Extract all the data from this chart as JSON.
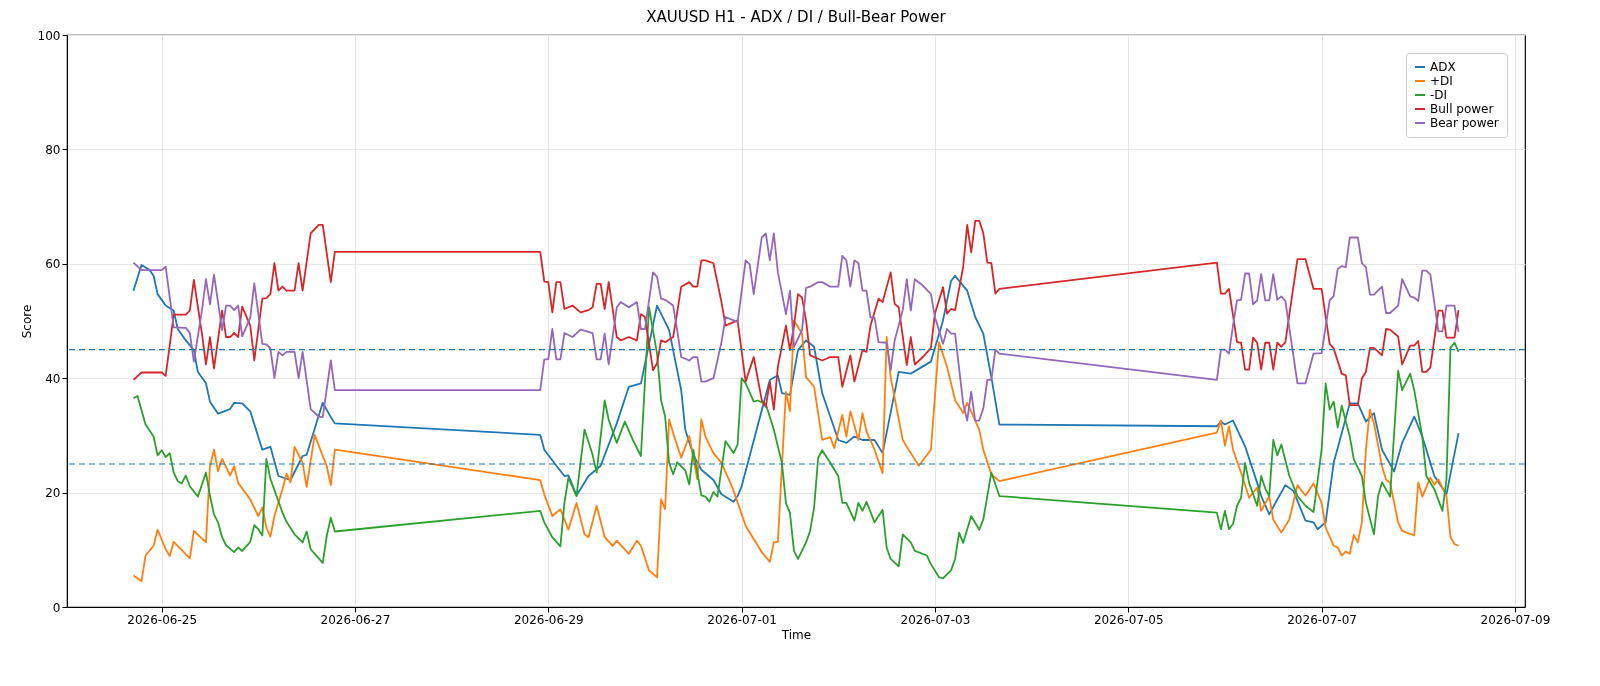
{
  "chart_data": {
    "type": "line",
    "title": "XAUUSD H1 - ADX / DI / Bull-Bear Power",
    "xlabel": "Time",
    "ylabel": "Score",
    "xlim": [
      "2026-06-24T00:30",
      "2026-07-09T02:30"
    ],
    "ylim": [
      0,
      100
    ],
    "xticks": [
      "2026-06-25",
      "2026-06-27",
      "2026-06-29",
      "2026-07-01",
      "2026-07-03",
      "2026-07-05",
      "2026-07-07",
      "2026-07-09"
    ],
    "yticks": [
      0,
      20,
      40,
      60,
      80,
      100
    ],
    "grid": true,
    "legend": "top right",
    "line_style": "solid",
    "ref_lines": [
      {
        "axis": "y",
        "value": 45,
        "label": null,
        "color": "#1f77b4",
        "line_style": "dashed"
      },
      {
        "axis": "y",
        "value": 25,
        "label": null,
        "color": "#1f77b4",
        "line_style": "dashed"
      }
    ],
    "series": [
      {
        "name": "ADX",
        "color": "#1f77b4",
        "x": [
          "2026-06-24T17:00",
          "2026-06-24T19:00",
          "2026-06-24T21:00",
          "2026-06-24T22:00",
          "2026-06-24T23:00",
          "2026-06-25T01:00",
          "2026-06-25T03:00",
          "2026-06-25T04:00",
          "2026-06-25T06:00",
          "2026-06-25T08:00",
          "2026-06-25T09:00",
          "2026-06-25T11:00",
          "2026-06-25T12:00",
          "2026-06-25T14:00",
          "2026-06-25T17:00",
          "2026-06-25T18:00",
          "2026-06-25T20:00",
          "2026-06-25T22:00",
          "2026-06-26T01:00",
          "2026-06-26T03:00",
          "2026-06-26T05:00",
          "2026-06-26T08:00",
          "2026-06-26T11:00",
          "2026-06-26T12:00",
          "2026-06-26T16:00",
          "2026-06-26T18:00",
          "2026-06-26T19:00",
          "2026-06-28T22:00",
          "2026-06-28T23:00",
          "2026-06-29T02:00",
          "2026-06-29T04:00",
          "2026-06-29T05:00",
          "2026-06-29T07:00",
          "2026-06-29T10:00",
          "2026-06-29T13:00",
          "2026-06-29T17:00",
          "2026-06-29T20:00",
          "2026-06-29T23:00",
          "2026-06-30T03:00",
          "2026-06-30T06:00",
          "2026-06-30T09:00",
          "2026-06-30T10:00",
          "2026-06-30T12:00",
          "2026-06-30T14:00",
          "2026-06-30T17:00",
          "2026-06-30T19:00",
          "2026-06-30T22:00",
          "2026-06-30T23:00",
          "2026-07-01T00:00",
          "2026-07-01T07:00",
          "2026-07-01T09:00",
          "2026-07-01T10:00",
          "2026-07-01T12:00",
          "2026-07-01T14:00",
          "2026-07-01T16:00",
          "2026-07-01T18:00",
          "2026-07-01T20:00",
          "2026-07-01T22:00",
          "2026-07-02T00:00",
          "2026-07-02T02:00",
          "2026-07-02T04:00",
          "2026-07-02T06:00",
          "2026-07-02T09:00",
          "2026-07-02T11:00",
          "2026-07-02T15:00",
          "2026-07-02T18:00",
          "2026-07-02T23:00",
          "2026-07-03T02:00",
          "2026-07-03T04:00",
          "2026-07-03T05:00",
          "2026-07-03T08:00",
          "2026-07-03T10:00",
          "2026-07-03T12:00",
          "2026-07-03T14:00",
          "2026-07-03T16:00",
          "2026-07-05T22:00",
          "2026-07-05T23:00",
          "2026-07-06T00:00",
          "2026-07-06T02:00",
          "2026-07-06T05:00",
          "2026-07-06T08:00",
          "2026-07-06T09:00",
          "2026-07-06T11:00",
          "2026-07-06T13:00",
          "2026-07-06T15:00",
          "2026-07-06T17:00",
          "2026-07-06T20:00",
          "2026-07-06T22:00",
          "2026-07-06T23:00",
          "2026-07-07T01:00",
          "2026-07-07T03:00",
          "2026-07-07T07:00",
          "2026-07-07T09:00",
          "2026-07-07T11:00",
          "2026-07-07T13:00",
          "2026-07-07T15:00",
          "2026-07-07T18:00",
          "2026-07-07T20:00",
          "2026-07-07T23:00",
          "2026-07-08T01:00",
          "2026-07-08T04:00",
          "2026-07-08T07:00",
          "2026-07-08T10:00"
        ],
        "values": [
          55.3,
          59.8,
          58.9,
          57.9,
          54.7,
          52.7,
          51.8,
          48.6,
          46.6,
          44.9,
          41.1,
          39.1,
          35.9,
          33.8,
          34.6,
          35.7,
          35.6,
          34.2,
          27.5,
          28.0,
          22.9,
          22.2,
          26.4,
          26.6,
          35.7,
          33.2,
          32.1,
          30.1,
          27.5,
          24.7,
          22.9,
          23.0,
          19.5,
          22.9,
          24.7,
          32.1,
          38.5,
          39.1,
          52.7,
          48.4,
          37.9,
          31.0,
          26.6,
          24.0,
          22.2,
          19.7,
          18.4,
          19.4,
          21.1,
          39.7,
          40.5,
          37.4,
          37.1,
          44.9,
          46.6,
          45.5,
          37.4,
          33.3,
          29.2,
          28.7,
          29.8,
          29.2,
          29.2,
          26.9,
          41.1,
          40.8,
          42.9,
          50.1,
          57.0,
          57.9,
          55.3,
          50.7,
          47.8,
          40.2,
          31.9,
          31.6,
          32.4,
          31.9,
          32.6,
          28.1,
          21.7,
          19.4,
          16.2,
          18.8,
          21.3,
          20.3,
          15.1,
          14.8,
          13.6,
          14.8,
          25.2,
          35.6,
          35.6,
          32.4,
          33.9,
          27.5,
          23.7,
          28.7,
          33.3,
          29.8,
          22.9,
          19.7,
          30.4
        ]
      },
      {
        "name": "+DI",
        "color": "#ff7f0e",
        "x": [
          "2026-06-24T17:00",
          "2026-06-24T19:00",
          "2026-06-24T20:00",
          "2026-06-24T22:00",
          "2026-06-24T23:00",
          "2026-06-25T01:00",
          "2026-06-25T02:00",
          "2026-06-25T03:00",
          "2026-06-25T07:00",
          "2026-06-25T08:00",
          "2026-06-25T11:00",
          "2026-06-25T12:00",
          "2026-06-25T13:00",
          "2026-06-25T14:00",
          "2026-06-25T15:00",
          "2026-06-25T17:00",
          "2026-06-25T18:00",
          "2026-06-25T19:00",
          "2026-06-25T22:00",
          "2026-06-26T00:00",
          "2026-06-26T01:00",
          "2026-06-26T02:00",
          "2026-06-26T03:00",
          "2026-06-26T04:00",
          "2026-06-26T06:00",
          "2026-06-26T07:00",
          "2026-06-26T08:00",
          "2026-06-26T09:00",
          "2026-06-26T11:00",
          "2026-06-26T12:00",
          "2026-06-26T14:00",
          "2026-06-26T17:00",
          "2026-06-26T18:00",
          "2026-06-26T19:00",
          "2026-06-28T22:00",
          "2026-06-28T23:00",
          "2026-06-29T01:00",
          "2026-06-29T03:00",
          "2026-06-29T05:00",
          "2026-06-29T07:00",
          "2026-06-29T09:00",
          "2026-06-29T10:00",
          "2026-06-29T12:00",
          "2026-06-29T14:00",
          "2026-06-29T16:00",
          "2026-06-29T17:00",
          "2026-06-29T20:00",
          "2026-06-29T22:00",
          "2026-06-29T23:00",
          "2026-06-30T01:00",
          "2026-06-30T03:00",
          "2026-06-30T04:00",
          "2026-06-30T05:00",
          "2026-06-30T06:00",
          "2026-06-30T07:00",
          "2026-06-30T09:00",
          "2026-06-30T11:00",
          "2026-06-30T13:00",
          "2026-06-30T14:00",
          "2026-06-30T15:00",
          "2026-06-30T17:00",
          "2026-06-30T19:00",
          "2026-06-30T21:00",
          "2026-06-30T22:00",
          "2026-07-01T01:00",
          "2026-07-01T03:00",
          "2026-07-01T05:00",
          "2026-07-01T07:00",
          "2026-07-01T08:00",
          "2026-07-01T09:00",
          "2026-07-01T11:00",
          "2026-07-01T12:00",
          "2026-07-01T13:00",
          "2026-07-01T15:00",
          "2026-07-01T16:00",
          "2026-07-01T18:00",
          "2026-07-01T20:00",
          "2026-07-01T22:00",
          "2026-07-01T23:00",
          "2026-07-02T01:00",
          "2026-07-02T02:00",
          "2026-07-02T03:00",
          "2026-07-02T05:00",
          "2026-07-02T06:00",
          "2026-07-02T07:00",
          "2026-07-02T09:00",
          "2026-07-02T11:00",
          "2026-07-02T12:00",
          "2026-07-02T13:00",
          "2026-07-02T16:00",
          "2026-07-02T18:00",
          "2026-07-02T20:00",
          "2026-07-02T23:00",
          "2026-07-03T01:00",
          "2026-07-03T03:00",
          "2026-07-03T05:00",
          "2026-07-03T07:00",
          "2026-07-03T08:00",
          "2026-07-03T11:00",
          "2026-07-03T12:00",
          "2026-07-03T14:00",
          "2026-07-03T16:00",
          "2026-07-05T22:00",
          "2026-07-05T23:00",
          "2026-07-06T00:00",
          "2026-07-06T01:00",
          "2026-07-06T02:00",
          "2026-07-06T04:00",
          "2026-07-06T06:00",
          "2026-07-06T08:00",
          "2026-07-06T09:00",
          "2026-07-06T11:00",
          "2026-07-06T12:00",
          "2026-07-06T14:00",
          "2026-07-06T16:00",
          "2026-07-06T18:00",
          "2026-07-06T20:00",
          "2026-07-06T22:00",
          "2026-07-07T00:00",
          "2026-07-07T01:00",
          "2026-07-07T03:00",
          "2026-07-07T04:00",
          "2026-07-07T05:00",
          "2026-07-07T06:00",
          "2026-07-07T07:00",
          "2026-07-07T08:00",
          "2026-07-07T09:00",
          "2026-07-07T10:00",
          "2026-07-07T11:00",
          "2026-07-07T12:00",
          "2026-07-07T13:00",
          "2026-07-07T15:00",
          "2026-07-07T16:00",
          "2026-07-07T17:00",
          "2026-07-07T19:00",
          "2026-07-07T20:00",
          "2026-07-07T23:00",
          "2026-07-08T00:00",
          "2026-07-08T01:00",
          "2026-07-08T03:00",
          "2026-07-08T04:00",
          "2026-07-08T05:00",
          "2026-07-08T07:00",
          "2026-07-08T08:00",
          "2026-07-08T09:00",
          "2026-07-08T10:00"
        ],
        "values": [
          5.5,
          4.5,
          9.0,
          10.7,
          13.5,
          10.1,
          8.9,
          11.4,
          8.5,
          13.3,
          11.3,
          24.6,
          27.5,
          23.7,
          25.9,
          23.0,
          24.6,
          21.7,
          18.8,
          15.9,
          17.4,
          13.9,
          12.3,
          15.9,
          20.6,
          23.3,
          21.8,
          28.0,
          25.2,
          21.0,
          30.1,
          24.6,
          21.3,
          27.5,
          22.2,
          19.7,
          15.9,
          17.1,
          13.5,
          18.2,
          12.7,
          12.2,
          17.7,
          12.2,
          10.7,
          11.6,
          9.3,
          11.6,
          10.7,
          6.4,
          5.2,
          18.8,
          17.1,
          32.8,
          30.4,
          26.1,
          29.9,
          22.3,
          32.8,
          29.8,
          26.9,
          25.2,
          22.0,
          20.3,
          14.2,
          11.9,
          9.6,
          7.9,
          11.3,
          11.4,
          37.6,
          34.2,
          50.1,
          47.8,
          40.2,
          38.5,
          29.2,
          29.7,
          27.8,
          33.6,
          29.8,
          34.2,
          29.2,
          33.9,
          30.7,
          27.5,
          23.4,
          47.2,
          40.2,
          29.2,
          26.9,
          24.7,
          27.5,
          46.3,
          42.0,
          36.2,
          33.9,
          35.7,
          31.0,
          27.5,
          23.2,
          22.0,
          30.5,
          32.6,
          28.2,
          31.6,
          27.5,
          23.5,
          19.1,
          20.9,
          16.8,
          19.4,
          15.3,
          13.0,
          15.3,
          21.3,
          19.5,
          21.6,
          18.2,
          13.9,
          10.7,
          10.4,
          9.0,
          9.7,
          9.3,
          12.6,
          11.3,
          14.8,
          27.5,
          34.5,
          32.1,
          24.6,
          22.3,
          21.7,
          14.8,
          13.3,
          12.5,
          21.8,
          19.3,
          22.6,
          21.4,
          22.3,
          19.4,
          12.2,
          11.0,
          10.7
        ]
      },
      {
        "name": "-DI",
        "color": "#2ca02c",
        "x": [
          "2026-06-24T17:00",
          "2026-06-24T18:00",
          "2026-06-24T20:00",
          "2026-06-24T22:00",
          "2026-06-24T23:00",
          "2026-06-25T00:00",
          "2026-06-25T01:00",
          "2026-06-25T02:00",
          "2026-06-25T03:00",
          "2026-06-25T04:00",
          "2026-06-25T05:00",
          "2026-06-25T06:00",
          "2026-06-25T07:00",
          "2026-06-25T09:00",
          "2026-06-25T11:00",
          "2026-06-25T12:00",
          "2026-06-25T13:00",
          "2026-06-25T14:00",
          "2026-06-25T15:00",
          "2026-06-25T16:00",
          "2026-06-25T18:00",
          "2026-06-25T19:00",
          "2026-06-25T20:00",
          "2026-06-25T22:00",
          "2026-06-25T23:00",
          "2026-06-26T00:00",
          "2026-06-26T01:00",
          "2026-06-26T02:00",
          "2026-06-26T03:00",
          "2026-06-26T06:00",
          "2026-06-26T07:00",
          "2026-06-26T09:00",
          "2026-06-26T11:00",
          "2026-06-26T12:00",
          "2026-06-26T13:00",
          "2026-06-26T15:00",
          "2026-06-26T16:00",
          "2026-06-26T17:00",
          "2026-06-26T18:00",
          "2026-06-26T19:00",
          "2026-06-28T22:00",
          "2026-06-28T23:00",
          "2026-06-29T01:00",
          "2026-06-29T03:00",
          "2026-06-29T04:00",
          "2026-06-29T05:00",
          "2026-06-29T07:00",
          "2026-06-29T09:00",
          "2026-06-29T11:00",
          "2026-06-29T12:00",
          "2026-06-29T14:00",
          "2026-06-29T15:00",
          "2026-06-29T17:00",
          "2026-06-29T19:00",
          "2026-06-29T21:00",
          "2026-06-29T23:00",
          "2026-06-30T01:00",
          "2026-06-30T03:00",
          "2026-06-30T04:00",
          "2026-06-30T05:00",
          "2026-06-30T06:00",
          "2026-06-30T07:00",
          "2026-06-30T08:00",
          "2026-06-30T10:00",
          "2026-06-30T11:00",
          "2026-06-30T12:00",
          "2026-06-30T14:00",
          "2026-06-30T15:00",
          "2026-06-30T16:00",
          "2026-06-30T17:00",
          "2026-06-30T18:00",
          "2026-06-30T20:00",
          "2026-06-30T22:00",
          "2026-06-30T23:00",
          "2026-07-01T00:00",
          "2026-07-01T01:00",
          "2026-07-01T03:00",
          "2026-07-01T04:00",
          "2026-07-01T06:00",
          "2026-07-01T08:00",
          "2026-07-01T10:00",
          "2026-07-01T11:00",
          "2026-07-01T12:00",
          "2026-07-01T13:00",
          "2026-07-01T14:00",
          "2026-07-01T16:00",
          "2026-07-01T17:00",
          "2026-07-01T18:00",
          "2026-07-01T19:00",
          "2026-07-01T20:00",
          "2026-07-01T22:00",
          "2026-07-02T00:00",
          "2026-07-02T01:00",
          "2026-07-02T02:00",
          "2026-07-02T04:00",
          "2026-07-02T05:00",
          "2026-07-02T06:00",
          "2026-07-02T07:00",
          "2026-07-02T09:00",
          "2026-07-02T11:00",
          "2026-07-02T12:00",
          "2026-07-02T13:00",
          "2026-07-02T15:00",
          "2026-07-02T16:00",
          "2026-07-02T18:00",
          "2026-07-02T19:00",
          "2026-07-02T22:00",
          "2026-07-02T23:00",
          "2026-07-03T01:00",
          "2026-07-03T02:00",
          "2026-07-03T04:00",
          "2026-07-03T05:00",
          "2026-07-03T06:00",
          "2026-07-03T07:00",
          "2026-07-03T09:00",
          "2026-07-03T11:00",
          "2026-07-03T12:00",
          "2026-07-03T14:00",
          "2026-07-03T16:00",
          "2026-07-05T22:00",
          "2026-07-05T23:00",
          "2026-07-06T00:00",
          "2026-07-06T01:00",
          "2026-07-06T02:00",
          "2026-07-06T03:00",
          "2026-07-06T04:00",
          "2026-07-06T05:00",
          "2026-07-06T06:00",
          "2026-07-06T08:00",
          "2026-07-06T09:00",
          "2026-07-06T10:00",
          "2026-07-06T11:00",
          "2026-07-06T12:00",
          "2026-07-06T13:00",
          "2026-07-06T14:00",
          "2026-07-06T16:00",
          "2026-07-06T18:00",
          "2026-07-06T20:00",
          "2026-07-06T22:00",
          "2026-07-07T00:00",
          "2026-07-07T01:00",
          "2026-07-07T02:00",
          "2026-07-07T03:00",
          "2026-07-07T04:00",
          "2026-07-07T05:00",
          "2026-07-07T07:00",
          "2026-07-07T08:00",
          "2026-07-07T10:00",
          "2026-07-07T11:00",
          "2026-07-07T13:00",
          "2026-07-07T14:00",
          "2026-07-07T15:00",
          "2026-07-07T17:00",
          "2026-07-07T19:00",
          "2026-07-07T20:00",
          "2026-07-07T22:00",
          "2026-07-07T23:00",
          "2026-07-08T01:00",
          "2026-07-08T02:00",
          "2026-07-08T04:00",
          "2026-07-08T06:00",
          "2026-07-08T07:00",
          "2026-07-08T08:00",
          "2026-07-08T09:00",
          "2026-07-08T10:00"
        ],
        "values": [
          36.5,
          36.9,
          31.9,
          29.8,
          26.5,
          27.4,
          26.2,
          26.9,
          23.5,
          22.0,
          21.6,
          23.0,
          21.1,
          19.3,
          23.5,
          19.4,
          16.2,
          14.8,
          12.2,
          10.8,
          9.6,
          10.4,
          9.8,
          11.4,
          14.3,
          13.6,
          12.5,
          25.9,
          22.4,
          16.5,
          14.9,
          12.7,
          11.3,
          13.2,
          10.1,
          8.5,
          7.7,
          12.5,
          15.6,
          13.2,
          16.8,
          14.8,
          12.2,
          10.6,
          18.2,
          22.6,
          19.4,
          31.0,
          26.6,
          23.5,
          36.1,
          32.7,
          28.7,
          32.4,
          29.2,
          26.4,
          52.4,
          44.3,
          36.2,
          33.3,
          25.2,
          23.2,
          25.3,
          23.9,
          21.4,
          27.5,
          19.5,
          19.3,
          18.4,
          20.1,
          19.3,
          29.0,
          26.9,
          28.4,
          40.0,
          39.1,
          35.9,
          36.1,
          35.5,
          31.0,
          25.2,
          18.2,
          16.4,
          9.8,
          8.4,
          11.3,
          13.3,
          17.4,
          26.1,
          27.4,
          25.2,
          22.9,
          18.2,
          18.2,
          15.1,
          18.2,
          16.8,
          18.4,
          14.8,
          17.0,
          10.4,
          8.4,
          7.1,
          12.7,
          11.3,
          9.8,
          9.0,
          7.5,
          5.2,
          5.0,
          6.4,
          8.4,
          13.0,
          11.2,
          15.9,
          13.5,
          15.3,
          23.5,
          19.4,
          16.5,
          13.6,
          16.8,
          13.6,
          14.5,
          17.7,
          19.1,
          25.2,
          21.7,
          17.7,
          22.9,
          20.7,
          19.4,
          29.2,
          26.5,
          28.4,
          22.9,
          19.4,
          17.7,
          16.6,
          27.5,
          39.1,
          34.5,
          35.9,
          31.4,
          35.2,
          29.8,
          25.8,
          22.9,
          18.2,
          12.7,
          19.3,
          21.8,
          19.3,
          41.3,
          37.9,
          40.8,
          37.9,
          29.8,
          22.9,
          20.6,
          16.8,
          22.3,
          45.3,
          46.2,
          44.6
        ]
      },
      {
        "name": "Bull power",
        "color": "#d62728",
        "x": [
          "2026-06-24T17:00",
          "2026-06-24T19:00",
          "2026-06-25T00:00",
          "2026-06-25T01:00",
          "2026-06-25T03:00",
          "2026-06-25T06:00",
          "2026-06-25T07:00",
          "2026-06-25T08:00",
          "2026-06-25T10:00",
          "2026-06-25T11:00",
          "2026-06-25T12:00",
          "2026-06-25T13:00",
          "2026-06-25T15:00",
          "2026-06-25T16:00",
          "2026-06-25T17:00",
          "2026-06-25T18:00",
          "2026-06-25T19:00",
          "2026-06-25T20:00",
          "2026-06-25T22:00",
          "2026-06-25T23:00",
          "2026-06-26T01:00",
          "2026-06-26T02:00",
          "2026-06-26T03:00",
          "2026-06-26T04:00",
          "2026-06-26T05:00",
          "2026-06-26T06:00",
          "2026-06-26T07:00",
          "2026-06-26T09:00",
          "2026-06-26T10:00",
          "2026-06-26T11:00",
          "2026-06-26T13:00",
          "2026-06-26T15:00",
          "2026-06-26T16:00",
          "2026-06-26T18:00",
          "2026-06-26T19:00",
          "2026-06-28T22:00",
          "2026-06-28T23:00",
          "2026-06-29T00:00",
          "2026-06-29T01:00",
          "2026-06-29T02:00",
          "2026-06-29T03:00",
          "2026-06-29T04:00",
          "2026-06-29T06:00",
          "2026-06-29T08:00",
          "2026-06-29T10:00",
          "2026-06-29T11:00",
          "2026-06-29T12:00",
          "2026-06-29T13:00",
          "2026-06-29T14:00",
          "2026-06-29T15:00",
          "2026-06-29T17:00",
          "2026-06-29T18:00",
          "2026-06-29T20:00",
          "2026-06-29T22:00",
          "2026-06-29T23:00",
          "2026-06-30T00:00",
          "2026-06-30T02:00",
          "2026-06-30T03:00",
          "2026-06-30T04:00",
          "2026-06-30T05:00",
          "2026-06-30T07:00",
          "2026-06-30T08:00",
          "2026-06-30T09:00",
          "2026-06-30T11:00",
          "2026-06-30T12:00",
          "2026-06-30T13:00",
          "2026-06-30T14:00",
          "2026-06-30T15:00",
          "2026-06-30T17:00",
          "2026-06-30T19:00",
          "2026-06-30T20:00",
          "2026-06-30T23:00",
          "2026-07-01T01:00",
          "2026-07-01T03:00",
          "2026-07-01T05:00",
          "2026-07-01T06:00",
          "2026-07-01T07:00",
          "2026-07-01T08:00",
          "2026-07-01T09:00",
          "2026-07-01T11:00",
          "2026-07-01T12:00",
          "2026-07-01T13:00",
          "2026-07-01T14:00",
          "2026-07-01T15:00",
          "2026-07-01T16:00",
          "2026-07-01T17:00",
          "2026-07-01T18:00",
          "2026-07-01T20:00",
          "2026-07-01T22:00",
          "2026-07-02T00:00",
          "2026-07-02T01:00",
          "2026-07-02T03:00",
          "2026-07-02T04:00",
          "2026-07-02T06:00",
          "2026-07-02T07:00",
          "2026-07-02T08:00",
          "2026-07-02T10:00",
          "2026-07-02T11:00",
          "2026-07-02T13:00",
          "2026-07-02T14:00",
          "2026-07-02T15:00",
          "2026-07-02T17:00",
          "2026-07-02T18:00",
          "2026-07-02T19:00",
          "2026-07-02T21:00",
          "2026-07-02T23:00",
          "2026-07-03T00:00",
          "2026-07-03T02:00",
          "2026-07-03T03:00",
          "2026-07-03T04:00",
          "2026-07-03T05:00",
          "2026-07-03T07:00",
          "2026-07-03T08:00",
          "2026-07-03T09:00",
          "2026-07-03T10:00",
          "2026-07-03T11:00",
          "2026-07-03T12:00",
          "2026-07-03T13:00",
          "2026-07-03T14:00",
          "2026-07-03T15:00",
          "2026-07-03T16:00",
          "2026-07-05T22:00",
          "2026-07-05T23:00",
          "2026-07-06T00:00",
          "2026-07-06T01:00",
          "2026-07-06T02:00",
          "2026-07-06T03:00",
          "2026-07-06T04:00",
          "2026-07-06T05:00",
          "2026-07-06T06:00",
          "2026-07-06T07:00",
          "2026-07-06T08:00",
          "2026-07-06T09:00",
          "2026-07-06T10:00",
          "2026-07-06T11:00",
          "2026-07-06T12:00",
          "2026-07-06T13:00",
          "2026-07-06T14:00",
          "2026-07-06T15:00",
          "2026-07-06T18:00",
          "2026-07-06T20:00",
          "2026-07-06T22:00",
          "2026-07-07T00:00",
          "2026-07-07T02:00",
          "2026-07-07T03:00",
          "2026-07-07T05:00",
          "2026-07-07T06:00",
          "2026-07-07T07:00",
          "2026-07-07T09:00",
          "2026-07-07T10:00",
          "2026-07-07T11:00",
          "2026-07-07T12:00",
          "2026-07-07T13:00",
          "2026-07-07T15:00",
          "2026-07-07T16:00",
          "2026-07-07T17:00",
          "2026-07-07T19:00",
          "2026-07-07T20:00",
          "2026-07-07T22:00",
          "2026-07-07T23:00",
          "2026-07-08T00:00",
          "2026-07-08T01:00",
          "2026-07-08T02:00",
          "2026-07-08T03:00",
          "2026-07-08T05:00",
          "2026-07-08T06:00",
          "2026-07-08T07:00",
          "2026-07-08T09:00",
          "2026-07-08T10:00"
        ],
        "values": [
          39.7,
          41.0,
          41.0,
          40.4,
          51.1,
          51.1,
          51.8,
          57.2,
          47.8,
          42.4,
          47.2,
          41.7,
          51.8,
          47.2,
          47.2,
          47.9,
          47.2,
          52.5,
          49.2,
          43.1,
          53.9,
          54.0,
          54.7,
          60.1,
          55.3,
          56.0,
          55.3,
          55.3,
          60.1,
          55.3,
          65.3,
          66.8,
          66.8,
          56.8,
          62.1,
          62.1,
          56.9,
          56.8,
          51.5,
          56.8,
          56.8,
          52.1,
          52.7,
          51.5,
          51.9,
          52.4,
          56.5,
          56.5,
          52.1,
          56.8,
          47.2,
          46.6,
          47.2,
          46.6,
          51.2,
          50.7,
          41.4,
          42.6,
          46.6,
          46.3,
          47.2,
          51.5,
          56.0,
          56.8,
          56.0,
          56.0,
          60.6,
          60.6,
          60.1,
          53.3,
          49.2,
          50.1,
          39.4,
          43.7,
          36.2,
          35.0,
          39.4,
          34.5,
          42.0,
          49.2,
          44.9,
          49.2,
          54.7,
          54.1,
          50.1,
          44.0,
          43.7,
          43.1,
          43.7,
          43.7,
          38.5,
          44.0,
          39.4,
          44.9,
          44.6,
          49.2,
          53.9,
          53.3,
          58.5,
          53.0,
          52.4,
          42.3,
          47.2,
          42.4,
          43.7,
          45.3,
          51.3,
          55.9,
          51.3,
          52.1,
          51.9,
          59.4,
          66.8,
          62.0,
          67.5,
          67.5,
          65.4,
          60.2,
          60.1,
          54.8,
          55.6,
          60.2,
          54.8,
          54.8,
          55.6,
          51.0,
          46.3,
          46.2,
          41.5,
          41.5,
          47.1,
          46.2,
          41.5,
          46.2,
          46.2,
          41.5,
          46.2,
          45.5,
          46.3,
          60.8,
          60.8,
          55.6,
          55.6,
          46.0,
          45.2,
          40.8,
          40.5,
          35.3,
          35.3,
          40.0,
          41.1,
          45.3,
          45.3,
          44.0,
          48.6,
          48.5,
          47.3,
          42.4,
          45.7,
          45.7,
          46.5,
          41.1,
          41.1,
          41.9,
          51.8,
          51.8,
          47.1,
          47.1,
          51.9
        ]
      },
      {
        "name": "Bear power",
        "color": "#9467bd",
        "x": [
          "2026-06-24T17:00",
          "2026-06-24T19:00",
          "2026-06-25T00:00",
          "2026-06-25T01:00",
          "2026-06-25T03:00",
          "2026-06-25T06:00",
          "2026-06-25T07:00",
          "2026-06-25T08:00",
          "2026-06-25T10:00",
          "2026-06-25T11:00",
          "2026-06-25T12:00",
          "2026-06-25T13:00",
          "2026-06-25T15:00",
          "2026-06-25T16:00",
          "2026-06-25T17:00",
          "2026-06-25T18:00",
          "2026-06-25T19:00",
          "2026-06-25T20:00",
          "2026-06-25T22:00",
          "2026-06-25T23:00",
          "2026-06-26T01:00",
          "2026-06-26T02:00",
          "2026-06-26T03:00",
          "2026-06-26T04:00",
          "2026-06-26T05:00",
          "2026-06-26T06:00",
          "2026-06-26T07:00",
          "2026-06-26T09:00",
          "2026-06-26T10:00",
          "2026-06-26T11:00",
          "2026-06-26T13:00",
          "2026-06-26T15:00",
          "2026-06-26T16:00",
          "2026-06-26T18:00",
          "2026-06-26T19:00",
          "2026-06-28T22:00",
          "2026-06-28T23:00",
          "2026-06-29T00:00",
          "2026-06-29T01:00",
          "2026-06-29T02:00",
          "2026-06-29T03:00",
          "2026-06-29T04:00",
          "2026-06-29T06:00",
          "2026-06-29T08:00",
          "2026-06-29T10:00",
          "2026-06-29T11:00",
          "2026-06-29T12:00",
          "2026-06-29T13:00",
          "2026-06-29T14:00",
          "2026-06-29T15:00",
          "2026-06-29T17:00",
          "2026-06-29T18:00",
          "2026-06-29T20:00",
          "2026-06-29T22:00",
          "2026-06-29T23:00",
          "2026-06-30T00:00",
          "2026-06-30T02:00",
          "2026-06-30T03:00",
          "2026-06-30T04:00",
          "2026-06-30T05:00",
          "2026-06-30T07:00",
          "2026-06-30T08:00",
          "2026-06-30T09:00",
          "2026-06-30T11:00",
          "2026-06-30T12:00",
          "2026-06-30T13:00",
          "2026-06-30T14:00",
          "2026-06-30T15:00",
          "2026-06-30T17:00",
          "2026-06-30T19:00",
          "2026-06-30T20:00",
          "2026-06-30T23:00",
          "2026-07-01T01:00",
          "2026-07-01T02:00",
          "2026-07-01T03:00",
          "2026-07-01T05:00",
          "2026-07-01T06:00",
          "2026-07-01T07:00",
          "2026-07-01T08:00",
          "2026-07-01T09:00",
          "2026-07-01T11:00",
          "2026-07-01T12:00",
          "2026-07-01T13:00",
          "2026-07-01T15:00",
          "2026-07-01T16:00",
          "2026-07-01T17:00",
          "2026-07-01T19:00",
          "2026-07-01T20:00",
          "2026-07-01T22:00",
          "2026-07-02T00:00",
          "2026-07-02T01:00",
          "2026-07-02T02:00",
          "2026-07-02T03:00",
          "2026-07-02T04:00",
          "2026-07-02T05:00",
          "2026-07-02T06:00",
          "2026-07-02T07:00",
          "2026-07-02T08:00",
          "2026-07-02T09:00",
          "2026-07-02T10:00",
          "2026-07-02T12:00",
          "2026-07-02T13:00",
          "2026-07-02T14:00",
          "2026-07-02T16:00",
          "2026-07-02T17:00",
          "2026-07-02T18:00",
          "2026-07-02T19:00",
          "2026-07-02T21:00",
          "2026-07-02T23:00",
          "2026-07-03T00:00",
          "2026-07-03T02:00",
          "2026-07-03T03:00",
          "2026-07-03T04:00",
          "2026-07-03T05:00",
          "2026-07-03T07:00",
          "2026-07-03T08:00",
          "2026-07-03T09:00",
          "2026-07-03T10:00",
          "2026-07-03T11:00",
          "2026-07-03T12:00",
          "2026-07-03T13:00",
          "2026-07-03T14:00",
          "2026-07-03T15:00",
          "2026-07-03T16:00",
          "2026-07-05T22:00",
          "2026-07-05T23:00",
          "2026-07-06T00:00",
          "2026-07-06T01:00",
          "2026-07-06T02:00",
          "2026-07-06T03:00",
          "2026-07-06T04:00",
          "2026-07-06T05:00",
          "2026-07-06T06:00",
          "2026-07-06T07:00",
          "2026-07-06T08:00",
          "2026-07-06T09:00",
          "2026-07-06T10:00",
          "2026-07-06T11:00",
          "2026-07-06T12:00",
          "2026-07-06T13:00",
          "2026-07-06T14:00",
          "2026-07-06T15:00",
          "2026-07-06T18:00",
          "2026-07-06T20:00",
          "2026-07-06T22:00",
          "2026-07-07T00:00",
          "2026-07-07T02:00",
          "2026-07-07T03:00",
          "2026-07-07T04:00",
          "2026-07-07T05:00",
          "2026-07-07T06:00",
          "2026-07-07T07:00",
          "2026-07-07T09:00",
          "2026-07-07T10:00",
          "2026-07-07T11:00",
          "2026-07-07T12:00",
          "2026-07-07T13:00",
          "2026-07-07T15:00",
          "2026-07-07T16:00",
          "2026-07-07T17:00",
          "2026-07-07T19:00",
          "2026-07-07T20:00",
          "2026-07-07T22:00",
          "2026-07-07T23:00",
          "2026-07-08T00:00",
          "2026-07-08T01:00",
          "2026-07-08T02:00",
          "2026-07-08T03:00",
          "2026-07-08T05:00",
          "2026-07-08T06:00",
          "2026-07-08T07:00",
          "2026-07-08T09:00",
          "2026-07-08T10:00"
        ],
        "values": [
          60.2,
          58.9,
          58.9,
          59.5,
          48.9,
          48.8,
          47.9,
          42.9,
          51.8,
          57.3,
          52.9,
          58.1,
          48.4,
          52.7,
          52.7,
          51.9,
          52.7,
          47.3,
          50.6,
          56.6,
          46.0,
          45.9,
          45.2,
          40.0,
          44.6,
          44.0,
          44.6,
          44.6,
          40.0,
          44.6,
          34.6,
          33.3,
          33.2,
          43.1,
          37.9,
          37.9,
          43.3,
          43.3,
          48.6,
          43.3,
          43.3,
          47.9,
          47.2,
          48.5,
          48.1,
          47.9,
          43.3,
          43.3,
          47.8,
          42.4,
          52.4,
          53.3,
          52.4,
          53.3,
          48.6,
          48.6,
          58.5,
          57.7,
          53.9,
          53.7,
          52.7,
          48.4,
          43.7,
          43.1,
          43.7,
          43.7,
          39.4,
          39.4,
          40.0,
          46.3,
          50.7,
          49.8,
          60.6,
          59.9,
          54.7,
          64.6,
          65.3,
          60.6,
          65.3,
          58.5,
          51.2,
          55.3,
          45.5,
          48.4,
          55.8,
          56.0,
          56.8,
          56.8,
          56.0,
          56.0,
          61.4,
          60.6,
          56.0,
          60.6,
          60.1,
          55.3,
          55.3,
          50.6,
          50.6,
          46.3,
          46.2,
          41.4,
          46.6,
          51.9,
          57.3,
          51.8,
          57.3,
          56.2,
          54.7,
          50.7,
          46.0,
          48.6,
          47.8,
          47.8,
          35.6,
          32.6,
          37.6,
          32.6,
          32.6,
          34.7,
          39.7,
          39.7,
          45.0,
          44.3,
          39.7,
          45.0,
          45.0,
          44.3,
          49.2,
          53.6,
          53.7,
          58.3,
          58.3,
          52.9,
          53.6,
          58.2,
          53.6,
          53.6,
          58.2,
          53.7,
          54.3,
          53.5,
          39.1,
          39.1,
          44.3,
          44.4,
          53.6,
          54.4,
          59.1,
          59.6,
          59.4,
          64.6,
          64.6,
          60.1,
          59.4,
          54.6,
          54.6,
          56.0,
          51.4,
          51.4,
          52.7,
          57.3,
          54.3,
          54.1,
          53.5,
          58.8,
          58.8,
          58.1,
          48.2,
          48.2,
          52.7,
          52.7,
          48.1
        ]
      }
    ]
  }
}
